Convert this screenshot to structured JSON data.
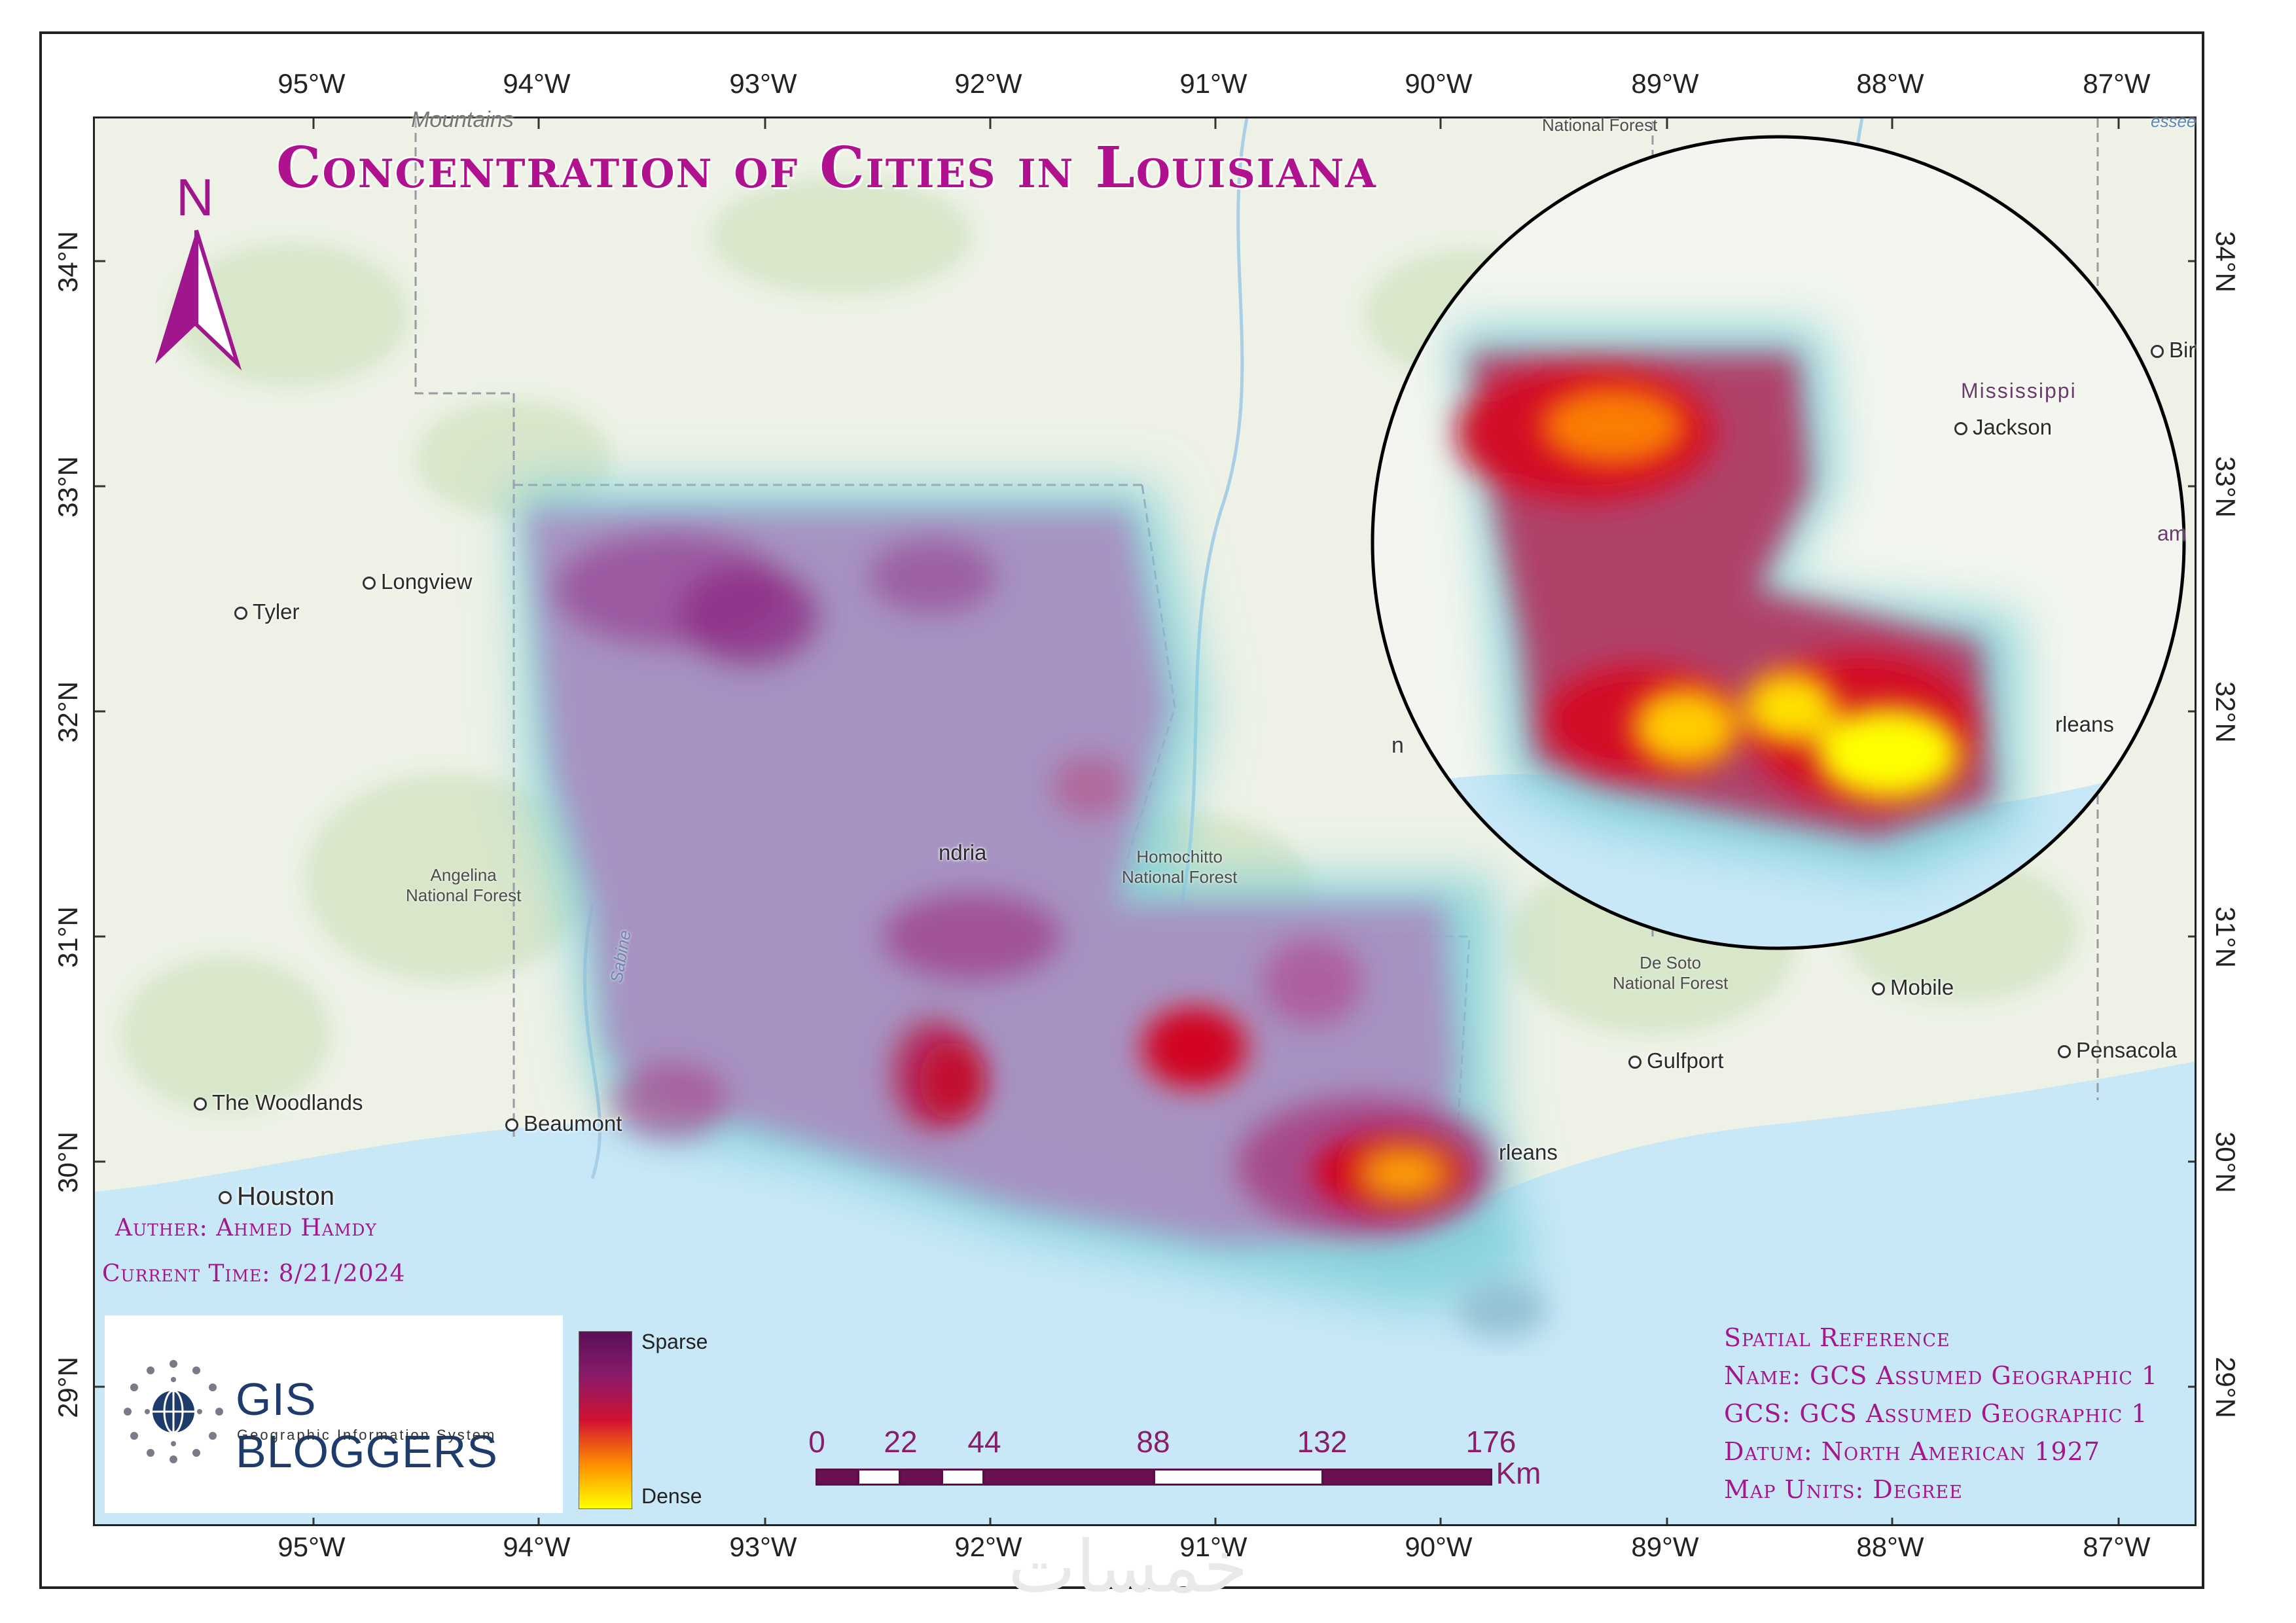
{
  "title": "Concentration of Cities in Louisiana",
  "longitude_labels": [
    "95°W",
    "94°W",
    "93°W",
    "92°W",
    "91°W",
    "90°W",
    "89°W",
    "88°W",
    "87°W"
  ],
  "latitude_labels": [
    "34°N",
    "33°N",
    "32°N",
    "31°N",
    "30°N",
    "29°N"
  ],
  "cities": {
    "tyler": "Tyler",
    "longview": "Longview",
    "woodlands": "The Woodlands",
    "houston": "Houston",
    "beaumont": "Beaumont",
    "alexandria": "ndria",
    "jackson": "Jackson",
    "mobile": "Mobile",
    "gulfport": "Gulfport",
    "pensacola": "Pensacola",
    "new_orleans": "rleans",
    "new_orleans_inset": "rleans",
    "birmingham": "Bir"
  },
  "regions": {
    "mississippi": "Mississippi",
    "mountains": "Mountains",
    "inset_n": "n",
    "sabine": "Sabine",
    "am": "am",
    "essee": "essee"
  },
  "forests": {
    "angelina": [
      "Angelina",
      "National Forest"
    ],
    "homochitto": [
      "Homochitto",
      "National Forest"
    ],
    "desoto": [
      "De Soto",
      "National Forest"
    ],
    "national_forest_top": "National Forest"
  },
  "north_arrow": "N",
  "author": "Auther: Ahmed Hamdy",
  "current_time": "Current Time: 8/21/2024",
  "logo": {
    "title": "GIS BLOGGERS",
    "subtitle": "Geographic Information System"
  },
  "legend": {
    "sparse": "Sparse",
    "dense": "Dense",
    "colors": [
      "#5a0f58",
      "#8a1a6b",
      "#d11132",
      "#ff8d00",
      "#ffff00"
    ]
  },
  "scale": {
    "labels": [
      "0",
      "22",
      "44",
      "88",
      "132",
      "176"
    ],
    "unit": "Km"
  },
  "spatial_reference": {
    "heading": "Spatial Reference",
    "name": "Name: GCS Assumed Geographic 1",
    "gcs": "GCS: GCS Assumed Geographic 1",
    "datum": "Datum: North American 1927",
    "units": "Map Units: Degree"
  },
  "watermark": "خمسات"
}
